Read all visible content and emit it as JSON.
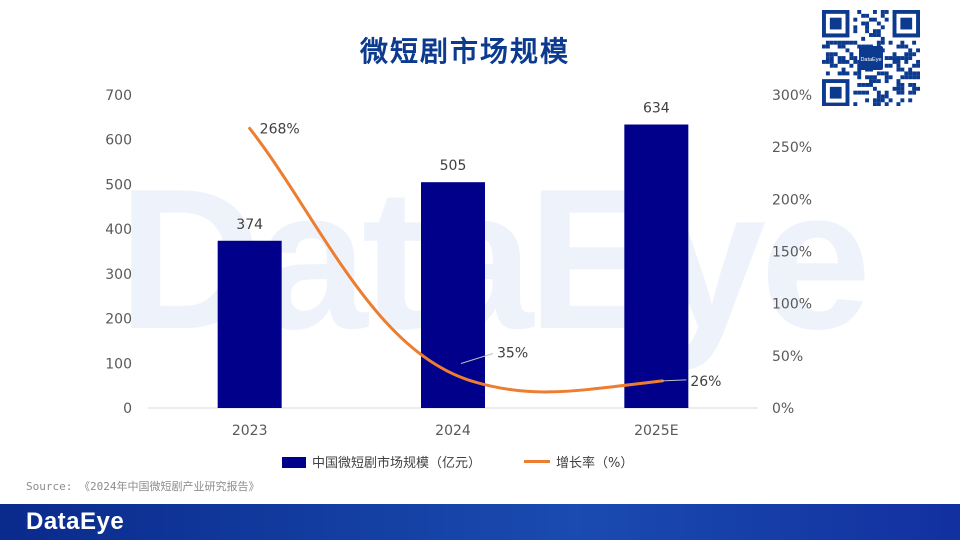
{
  "title": "微短剧市场规模",
  "watermark_text": "DataEye",
  "source_text": "Source: 《2024年中国微短剧产业研究报告》",
  "footer_logo": "DataEye",
  "qr_center_label": "DataEye",
  "chart_data": {
    "type": "bar",
    "categories": [
      "2023",
      "2024",
      "2025E"
    ],
    "series": [
      {
        "name": "中国微短剧市场规模（亿元）",
        "kind": "bar",
        "axis": "left",
        "values": [
          374,
          505,
          634
        ],
        "color": "#00008b",
        "labels": [
          "374",
          "505",
          "634"
        ]
      },
      {
        "name": "增长率（%）",
        "kind": "line",
        "axis": "right",
        "values": [
          268,
          35,
          26
        ],
        "color": "#ed7d31",
        "labels": [
          "268%",
          "35%",
          "26%"
        ]
      }
    ],
    "y_left": {
      "min": 0,
      "max": 700,
      "ticks": [
        "0",
        "100",
        "200",
        "300",
        "400",
        "500",
        "600",
        "700"
      ]
    },
    "y_right": {
      "min": 0,
      "max": 300,
      "ticks": [
        "0%",
        "50%",
        "100%",
        "150%",
        "200%",
        "250%",
        "300%"
      ]
    },
    "grid": false,
    "legend_position": "bottom"
  }
}
